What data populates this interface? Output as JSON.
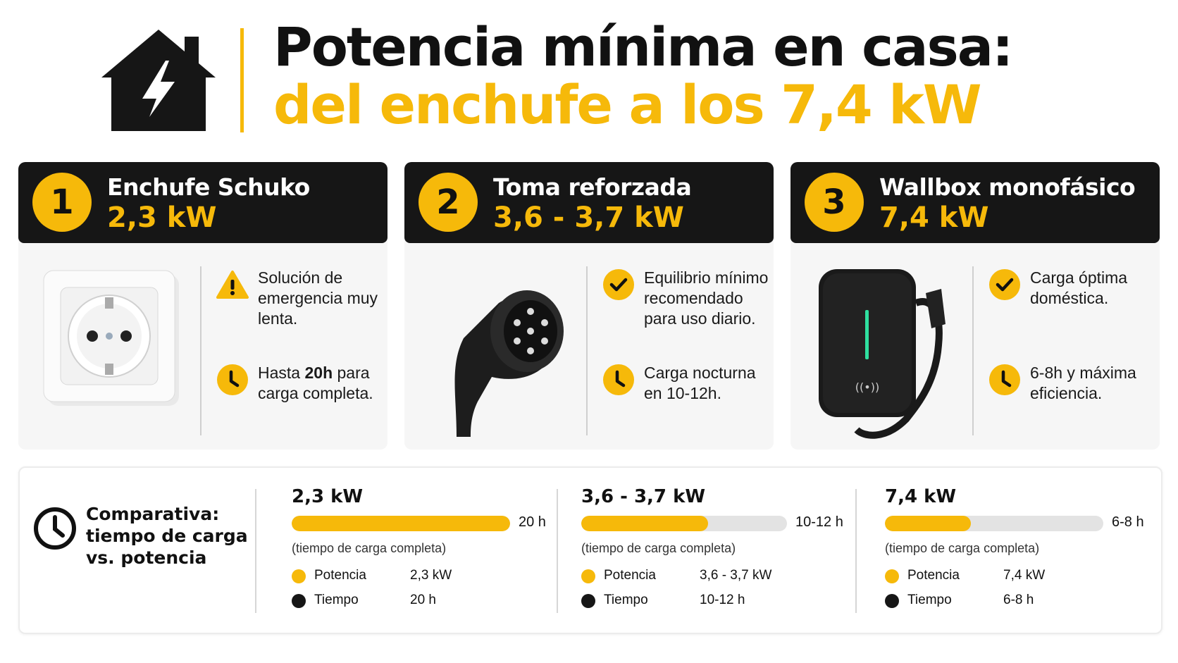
{
  "header": {
    "title_line1": "Potencia mínima en casa:",
    "title_line2": "del enchufe a los 7,4 kW"
  },
  "cards": [
    {
      "number": "1",
      "name": "Enchufe Schuko",
      "power": "2,3 kW",
      "items": [
        {
          "icon": "warning",
          "before": "Solución de emergencia muy lenta.",
          "bold": "",
          "after": ""
        },
        {
          "icon": "clock",
          "before": "Hasta ",
          "bold": "20h",
          "after": " para carga completa."
        }
      ]
    },
    {
      "number": "2",
      "name": "Toma reforzada",
      "power": "3,6 - 3,7 kW",
      "items": [
        {
          "icon": "check",
          "before": "Equilibrio mínimo recomendado para uso diario.",
          "bold": "",
          "after": ""
        },
        {
          "icon": "clock",
          "before": "Carga nocturna en 10-12h.",
          "bold": "",
          "after": ""
        }
      ]
    },
    {
      "number": "3",
      "name": "Wallbox monofásico",
      "power": "7,4 kW",
      "items": [
        {
          "icon": "check",
          "before": "Carga óptima doméstica.",
          "bold": "",
          "after": ""
        },
        {
          "icon": "clock",
          "before": "6-8h y máxima eficiencia.",
          "bold": "",
          "after": ""
        }
      ]
    }
  ],
  "comparison": {
    "title": "Comparativa: tiempo de carga vs. potencia",
    "sections": [
      {
        "power": "2,3 kW",
        "time": "20 h",
        "caption": "(tiempo de carga completa)",
        "legend": [
          {
            "label": "Potencia",
            "value": "2,3 kW"
          },
          {
            "label": "Tiempo",
            "value": "20 h"
          }
        ]
      },
      {
        "power": "3,6 - 3,7 kW",
        "time": "10-12 h",
        "caption": "(tiempo de carga completa)",
        "legend": [
          {
            "label": "Potencia",
            "value": "3,6 - 3,7 kW"
          },
          {
            "label": "Tiempo",
            "value": "10-12 h"
          }
        ]
      },
      {
        "power": "7,4 kW",
        "time": "6-8 h",
        "caption": "(tiempo de carga completa)",
        "legend": [
          {
            "label": "Potencia",
            "value": "7,4 kW"
          },
          {
            "label": "Tiempo",
            "value": "6-8 h"
          }
        ]
      }
    ]
  }
}
